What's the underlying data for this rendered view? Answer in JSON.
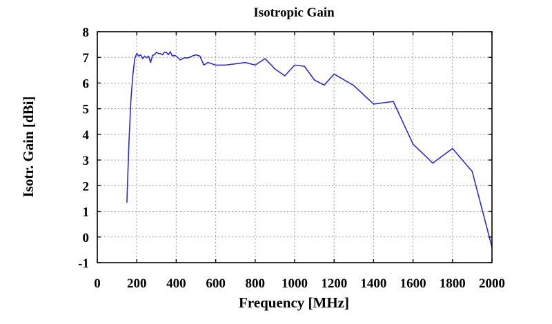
{
  "chart_data": {
    "type": "line",
    "title": "Isotropic Gain",
    "xlabel": "Frequency [MHz]",
    "ylabel": "Isotr. Gain [dBi]",
    "xlim": [
      0,
      2000
    ],
    "ylim": [
      -1,
      8
    ],
    "xticks": [
      0,
      200,
      400,
      600,
      800,
      1000,
      1200,
      1400,
      1600,
      1800,
      2000
    ],
    "yticks": [
      -1,
      0,
      1,
      2,
      3,
      4,
      5,
      6,
      7,
      8
    ],
    "grid": true,
    "legend": "none",
    "colors": {
      "series": "#2b2bc8"
    },
    "series": [
      {
        "x": [
          150,
          160,
          170,
          180,
          190,
          200,
          210,
          220,
          230,
          240,
          250,
          260,
          270,
          280,
          290,
          300,
          310,
          320,
          330,
          340,
          350,
          360,
          370,
          380,
          390,
          400,
          420,
          440,
          460,
          480,
          500,
          520,
          540,
          560,
          580,
          600,
          650,
          700,
          750,
          800,
          850,
          900,
          950,
          1000,
          1050,
          1100,
          1150,
          1200,
          1300,
          1400,
          1500,
          1600,
          1700,
          1800,
          1900,
          2000
        ],
        "y": [
          1.35,
          3.6,
          5.3,
          6.3,
          6.95,
          7.15,
          7.05,
          7.1,
          6.95,
          7.05,
          6.98,
          7.05,
          6.8,
          7.08,
          7.1,
          7.2,
          7.15,
          7.15,
          7.1,
          7.2,
          7.2,
          7.1,
          7.22,
          7.05,
          7.08,
          7.05,
          6.9,
          6.98,
          6.98,
          7.05,
          7.1,
          7.05,
          6.7,
          6.8,
          6.75,
          6.7,
          6.7,
          6.75,
          6.8,
          6.7,
          6.95,
          6.55,
          6.28,
          6.7,
          6.65,
          6.12,
          5.92,
          6.35,
          5.9,
          5.18,
          5.28,
          3.62,
          2.88,
          3.45,
          2.55,
          -0.4
        ]
      }
    ]
  }
}
